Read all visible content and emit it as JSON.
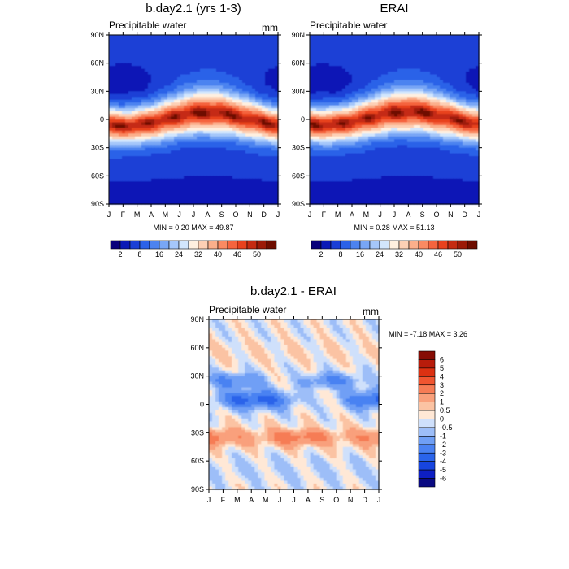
{
  "figure": {
    "type": "hovmoller-contour-panels",
    "colors": {
      "full_field_scale": [
        "#08007a",
        "#0b19b6",
        "#1a3fd6",
        "#2c62e8",
        "#4c83f0",
        "#78a6f5",
        "#a5c7fa",
        "#d2e6fd",
        "#fff0e0",
        "#fdd0b5",
        "#fbaf8b",
        "#f98a62",
        "#f5643e",
        "#e8421e",
        "#c52b12",
        "#9c1a08",
        "#6e0d00"
      ],
      "difference_scale": [
        "#0a0a82",
        "#0e1fc4",
        "#1745e0",
        "#2a64ea",
        "#4a82f2",
        "#6f9ff5",
        "#9dbef8",
        "#cfe0fb",
        "#ffe8d6",
        "#fbc3a3",
        "#f9a07b",
        "#f67c55",
        "#f05530",
        "#dc3112",
        "#b81c0b",
        "#860c04"
      ],
      "background": "#ffffff"
    }
  },
  "chart_data": [
    {
      "type": "heatmap",
      "title": "b.day2.1 (yrs 1-3)",
      "subtitle_left": "Precipitable water",
      "subtitle_right": "mm",
      "x_tick_labels": [
        "J",
        "F",
        "M",
        "A",
        "M",
        "J",
        "J",
        "A",
        "S",
        "O",
        "N",
        "D",
        "J"
      ],
      "y_tick_labels": [
        "90N",
        "60N",
        "30N",
        "0",
        "30S",
        "60S",
        "90S"
      ],
      "y_range": [
        -90,
        90
      ],
      "stats_text": "MIN =   0.20 MAX =  49.87",
      "min": 0.2,
      "max": 49.87,
      "colorbar_labels": [
        "2",
        "8",
        "16",
        "24",
        "32",
        "40",
        "46",
        "50"
      ],
      "colorbar_position": "bottom"
    },
    {
      "type": "heatmap",
      "title": "ERAI",
      "subtitle_left": "Precipitable water",
      "subtitle_right": "",
      "x_tick_labels": [
        "J",
        "F",
        "M",
        "A",
        "M",
        "J",
        "J",
        "A",
        "S",
        "O",
        "N",
        "D",
        "J"
      ],
      "y_tick_labels": [
        "90N",
        "60N",
        "30N",
        "0",
        "30S",
        "60S",
        "90S"
      ],
      "y_range": [
        -90,
        90
      ],
      "stats_text": "MIN =   0.28 MAX =  51.13",
      "min": 0.28,
      "max": 51.13,
      "colorbar_labels": [
        "2",
        "8",
        "16",
        "24",
        "32",
        "40",
        "46",
        "50"
      ],
      "colorbar_position": "bottom"
    },
    {
      "type": "heatmap",
      "title": "b.day2.1 - ERAI",
      "subtitle_left": "Precipitable water",
      "subtitle_right": "mm",
      "x_tick_labels": [
        "J",
        "F",
        "M",
        "A",
        "M",
        "J",
        "J",
        "A",
        "S",
        "O",
        "N",
        "D",
        "J"
      ],
      "y_tick_labels": [
        "90N",
        "60N",
        "30N",
        "0",
        "30S",
        "60S",
        "90S"
      ],
      "y_range": [
        -90,
        90
      ],
      "stats_text": "MIN =  -7.18 MAX =   3.26",
      "min": -7.18,
      "max": 3.26,
      "colorbar_labels": [
        "6",
        "5",
        "4",
        "3",
        "2",
        "1",
        "0.5",
        "0",
        "-0.5",
        "-1",
        "-2",
        "-3",
        "-4",
        "-5",
        "-6"
      ],
      "colorbar_position": "right"
    }
  ]
}
